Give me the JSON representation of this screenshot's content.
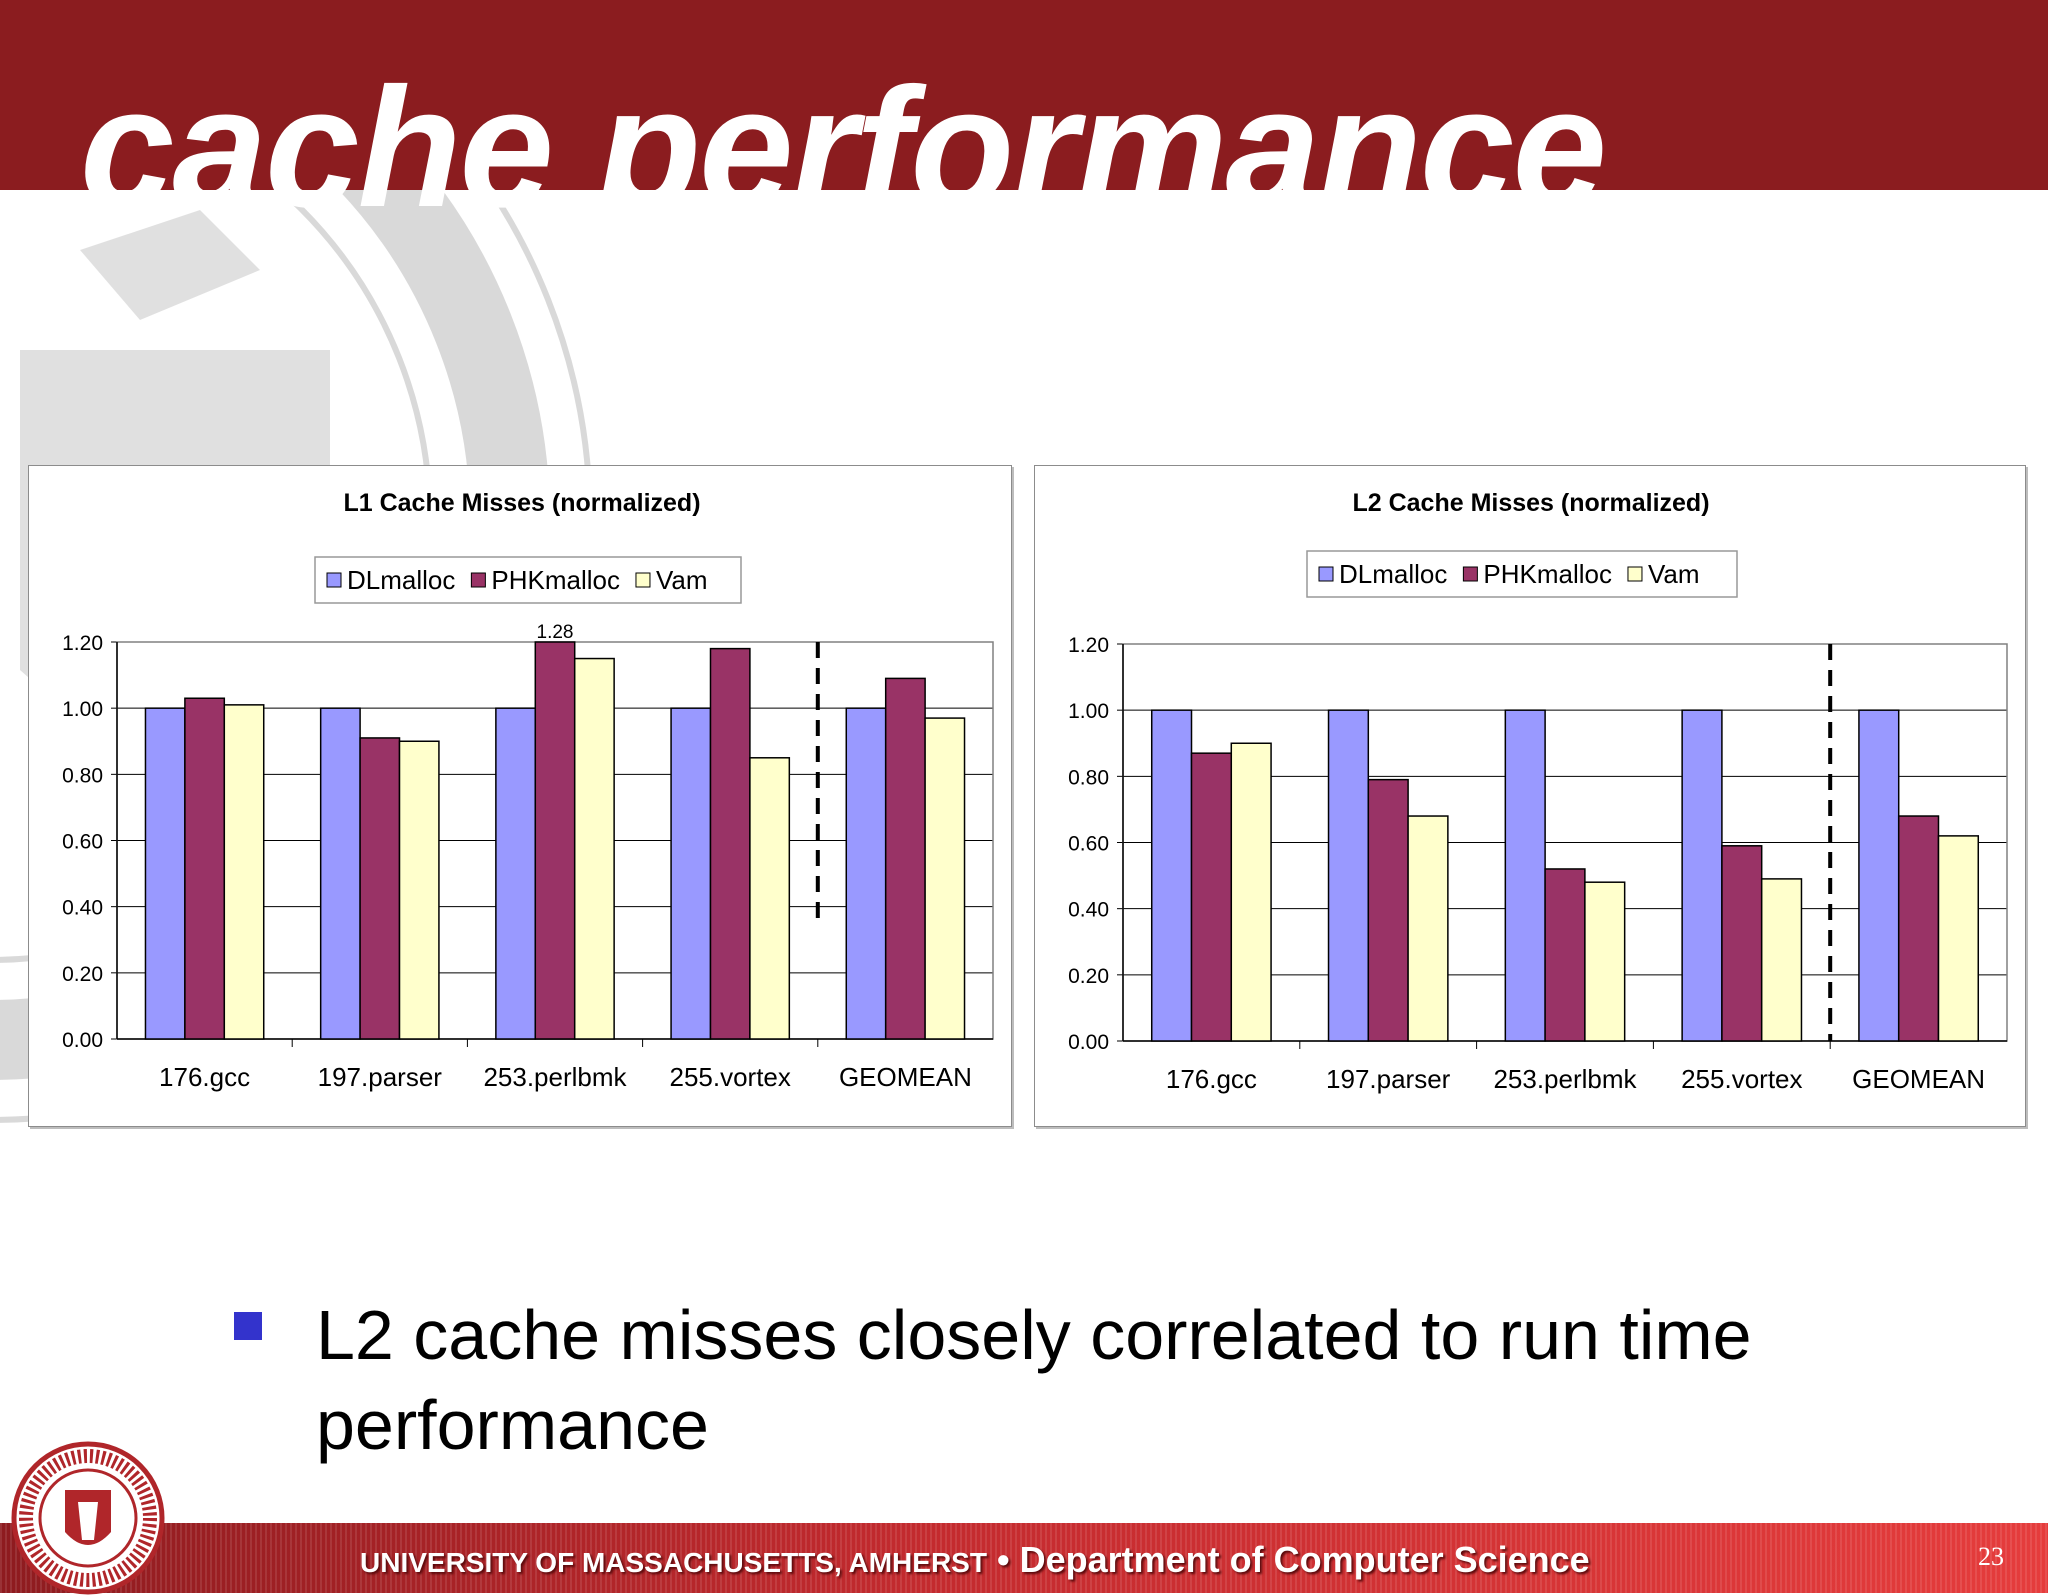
{
  "slide": {
    "title": "cache performance",
    "bullet": "L2 cache misses closely correlated to run time performance",
    "footer": {
      "university": "UNIVERSITY OF MASSACHUSETTS, AMHERST",
      "separator": "•",
      "department": "Department of Computer Science"
    },
    "page_number": "23"
  },
  "colors": {
    "topbar": "#8b1c1f",
    "dlmalloc": "#9999ff",
    "phkmalloc": "#993366",
    "vam": "#ffffcc",
    "bullet": "#3333cc"
  },
  "chart_data": [
    {
      "type": "bar",
      "title": "L1 Cache Misses (normalized)",
      "categories": [
        "176.gcc",
        "197.parser",
        "253.perlbmk",
        "255.vortex",
        "GEOMEAN"
      ],
      "series": [
        {
          "name": "DLmalloc",
          "values": [
            1.0,
            1.0,
            1.0,
            1.0,
            1.0
          ]
        },
        {
          "name": "PHKmalloc",
          "values": [
            1.03,
            0.91,
            1.28,
            1.18,
            1.09
          ]
        },
        {
          "name": "Vam",
          "values": [
            1.01,
            0.9,
            1.15,
            0.85,
            0.97
          ]
        }
      ],
      "ylim": [
        0,
        1.2
      ],
      "yticks": [
        "0.00",
        "0.20",
        "0.40",
        "0.60",
        "0.80",
        "1.00",
        "1.20"
      ],
      "grid": true,
      "legend": "top",
      "annotations": [
        {
          "text": "1.28",
          "category": "253.perlbmk",
          "series": "PHKmalloc"
        }
      ],
      "separator_before": "GEOMEAN"
    },
    {
      "type": "bar",
      "title": "L2 Cache Misses (normalized)",
      "categories": [
        "176.gcc",
        "197.parser",
        "253.perlbmk",
        "255.vortex",
        "GEOMEAN"
      ],
      "series": [
        {
          "name": "DLmalloc",
          "values": [
            1.0,
            1.0,
            1.0,
            1.0,
            1.0
          ]
        },
        {
          "name": "PHKmalloc",
          "values": [
            0.87,
            0.79,
            0.52,
            0.59,
            0.68
          ]
        },
        {
          "name": "Vam",
          "values": [
            0.9,
            0.68,
            0.48,
            0.49,
            0.62
          ]
        }
      ],
      "ylim": [
        0,
        1.2
      ],
      "yticks": [
        "0.00",
        "0.20",
        "0.40",
        "0.60",
        "0.80",
        "1.00",
        "1.20"
      ],
      "grid": true,
      "legend": "top",
      "annotations": [],
      "separator_before": "GEOMEAN"
    }
  ]
}
